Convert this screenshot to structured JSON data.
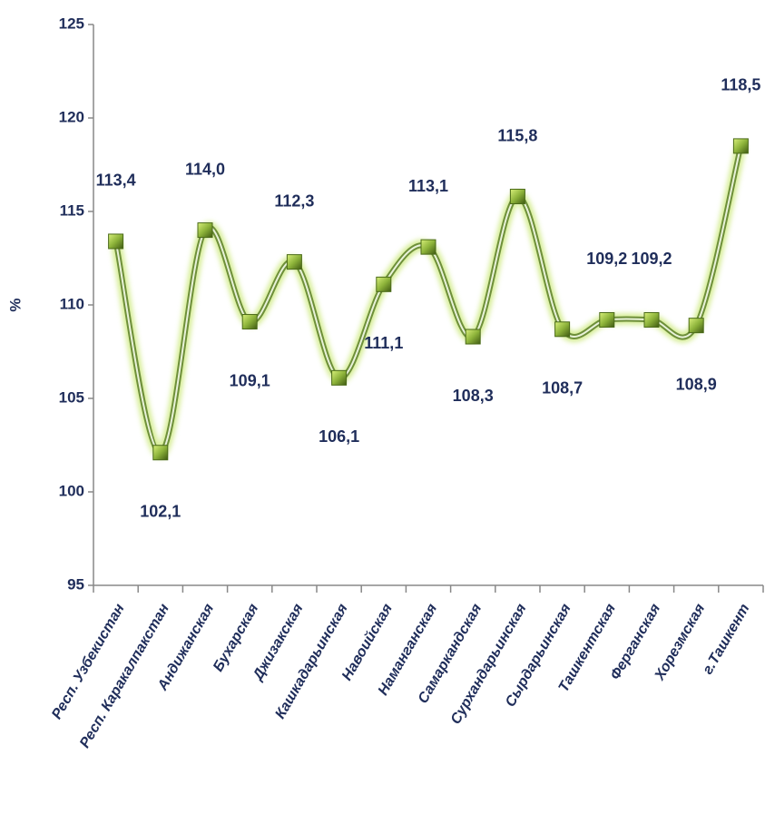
{
  "chart_data": {
    "type": "line",
    "y_label": "%",
    "categories": [
      "Респ. Узбекистан",
      "Респ. Каракалпакстан",
      "Андижанская",
      "Бухарская",
      "Джизакская",
      "Кашкадарьинская",
      "Навоийская",
      "Наманганская",
      "Самаркандская",
      "Сурхандарьинская",
      "Сырдарьинская",
      "Ташкентская",
      "Ферганская",
      "Хорезмская",
      "г.Ташкент"
    ],
    "series": [
      {
        "name": "%",
        "color": "#6e8f3a",
        "values": [
          113.4,
          102.1,
          114.0,
          109.1,
          112.3,
          106.1,
          111.1,
          113.1,
          108.3,
          115.8,
          108.7,
          109.2,
          109.2,
          108.9,
          118.5
        ],
        "value_labels": [
          "113,4",
          "102,1",
          "114,0",
          "109,1",
          "112,3",
          "106,1",
          "111,1",
          "113,1",
          "108,3",
          "115,8",
          "108,7",
          "109,2",
          "109,2",
          "108,9",
          "118,5"
        ]
      }
    ],
    "ylim": [
      95,
      125
    ],
    "yticks": [
      95,
      100,
      105,
      110,
      115,
      120,
      125
    ],
    "grid": false
  }
}
